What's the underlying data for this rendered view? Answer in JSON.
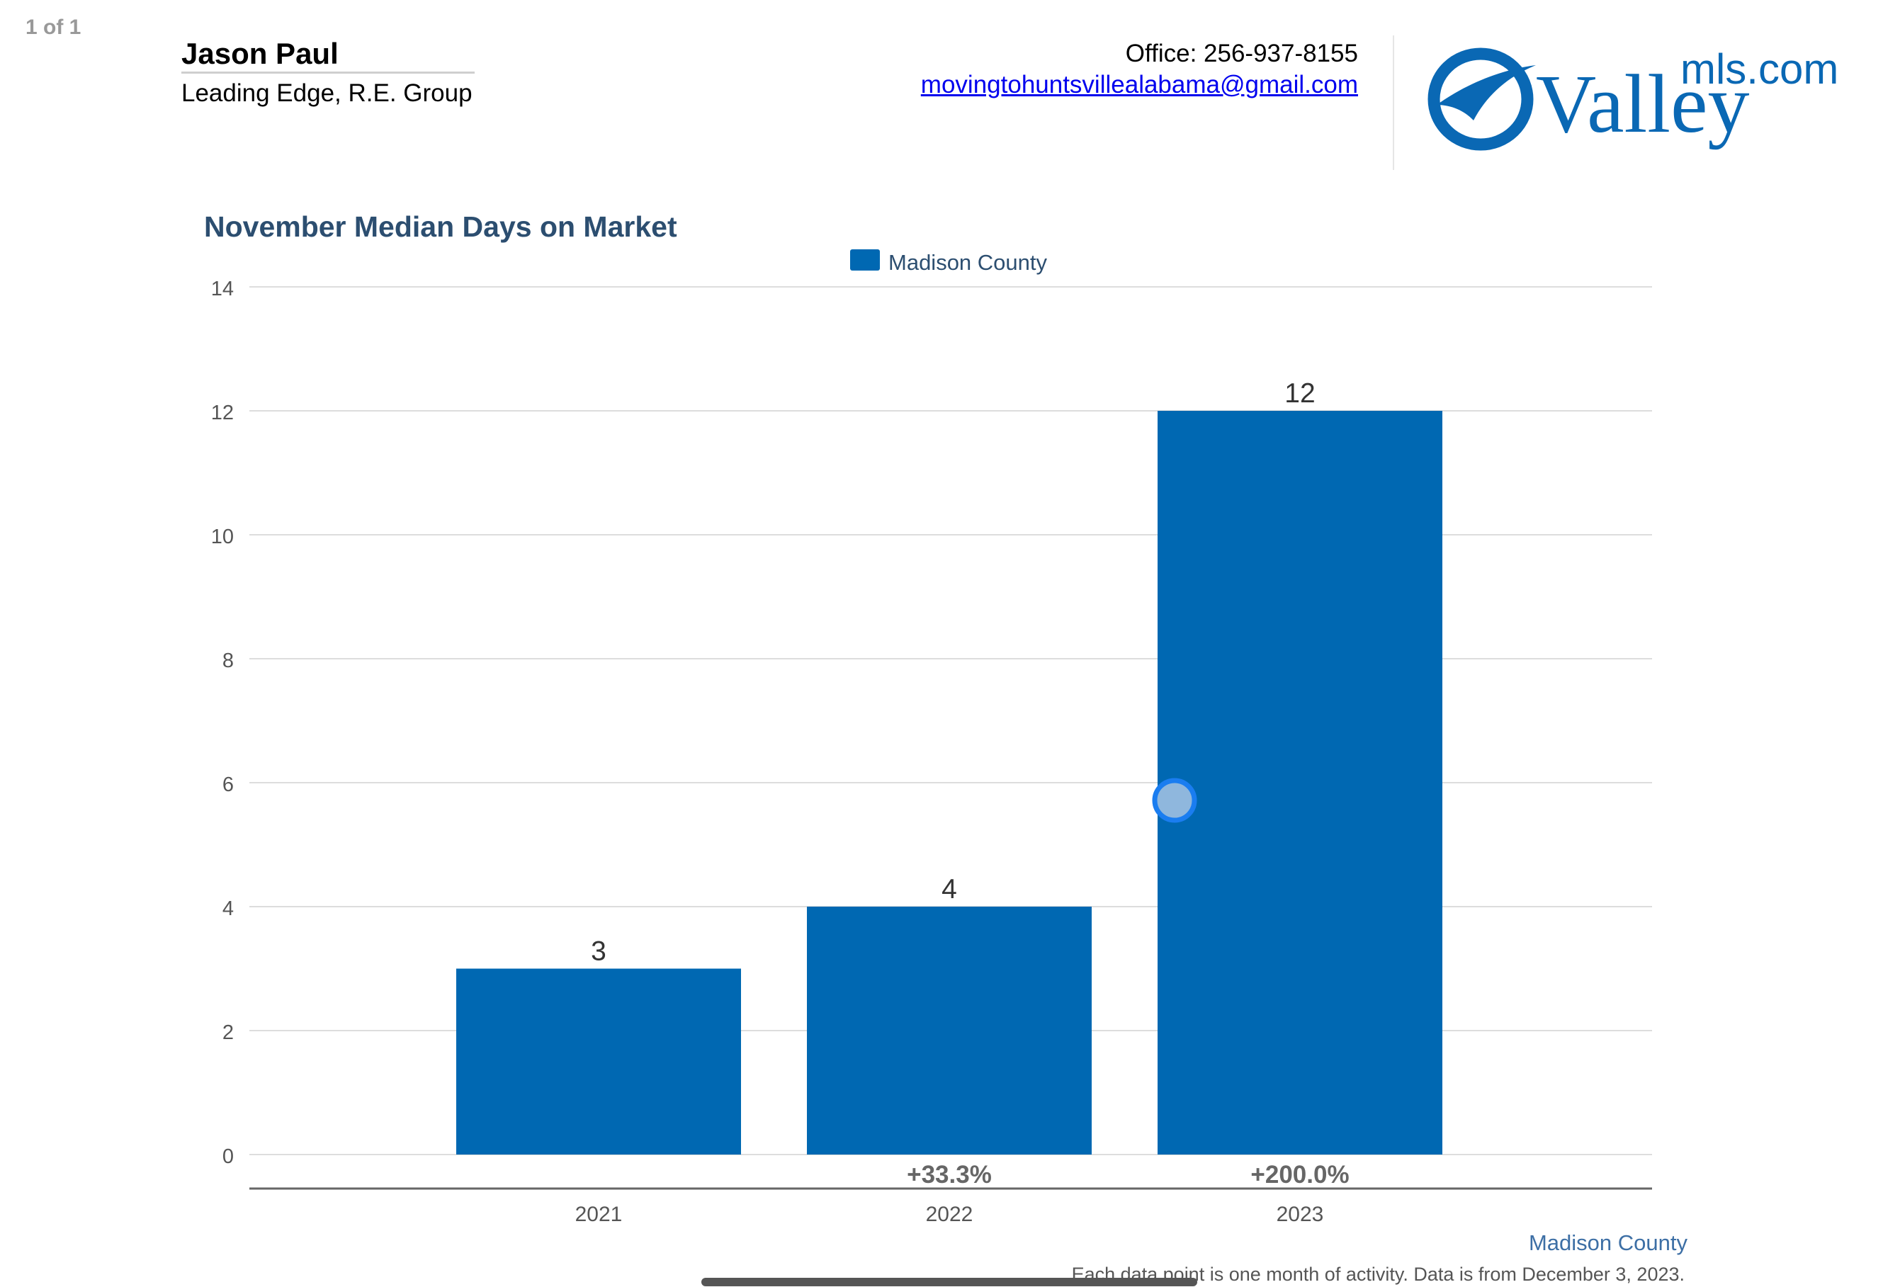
{
  "page_indicator": "1 of 1",
  "agent": {
    "name": "Jason Paul",
    "company": "Leading Edge, R.E. Group",
    "office": "Office: 256-937-8155",
    "email": "movingtohuntsvillealabama@gmail.com"
  },
  "logo": {
    "primary": "Valley",
    "secondary": "mls.com",
    "color": "#0a68b4"
  },
  "chart_data": {
    "type": "bar",
    "title": "November Median Days on Market",
    "legend": {
      "label": "Madison County",
      "placement": "top-center"
    },
    "categories": [
      "2021",
      "2022",
      "2023"
    ],
    "series": [
      {
        "name": "Madison County",
        "values": [
          3,
          4,
          12
        ],
        "color": "#0068b2"
      }
    ],
    "changes": [
      "",
      "+33.3%",
      "+200.0%"
    ],
    "ylim": [
      0,
      14
    ],
    "yticks": [
      0,
      2,
      4,
      6,
      8,
      10,
      12,
      14
    ],
    "grid": true,
    "xlabel": "",
    "ylabel": ""
  },
  "footer": {
    "area_label": "Madison County",
    "note": "Each data point is one month of activity. Data is from December 3, 2023."
  }
}
